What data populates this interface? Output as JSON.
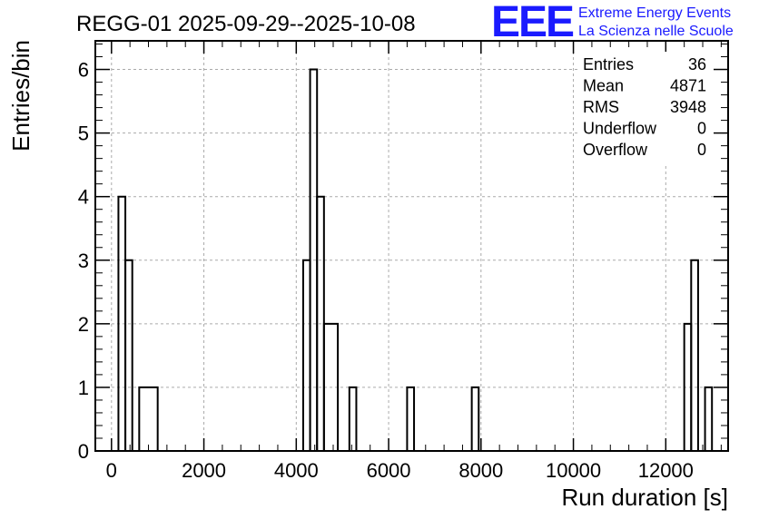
{
  "title": "REGG-01 2025-09-29--2025-10-08",
  "logo": {
    "mark": "EEE",
    "line1": "Extreme Energy Events",
    "line2": "La Scienza nelle Scuole",
    "color": "#1a1aff"
  },
  "stats": [
    {
      "label": "Entries",
      "value": "36"
    },
    {
      "label": "Mean",
      "value": "4871"
    },
    {
      "label": "RMS",
      "value": "3948"
    },
    {
      "label": "Underflow",
      "value": "0"
    },
    {
      "label": "Overflow",
      "value": "0"
    }
  ],
  "chart_data": {
    "type": "bar",
    "style": "step-histogram",
    "title": "REGG-01 2025-09-29--2025-10-08",
    "xlabel": "Run duration [s]",
    "ylabel": "Entries/bin",
    "xlim": [
      -350,
      13350
    ],
    "ylim": [
      0,
      6.45
    ],
    "grid": true,
    "legend": "none",
    "stats_box": "top-right",
    "x_ticks": [
      0,
      2000,
      4000,
      6000,
      8000,
      10000,
      12000
    ],
    "x_tick_labels": [
      "0",
      "2000",
      "4000",
      "6000",
      "8000",
      "10000",
      "12000"
    ],
    "y_ticks": [
      0,
      1,
      2,
      3,
      4,
      5,
      6
    ],
    "y_tick_labels": [
      "0",
      "1",
      "2",
      "3",
      "4",
      "5",
      "6"
    ],
    "bin_width": 150,
    "bins": [
      {
        "x_low": 150,
        "x_high": 300,
        "value": 4
      },
      {
        "x_low": 300,
        "x_high": 450,
        "value": 3
      },
      {
        "x_low": 600,
        "x_high": 1000,
        "value": 1
      },
      {
        "x_low": 4150,
        "x_high": 4300,
        "value": 3
      },
      {
        "x_low": 4300,
        "x_high": 4450,
        "value": 6
      },
      {
        "x_low": 4450,
        "x_high": 4600,
        "value": 4
      },
      {
        "x_low": 4600,
        "x_high": 4900,
        "value": 2
      },
      {
        "x_low": 5150,
        "x_high": 5300,
        "value": 1
      },
      {
        "x_low": 6400,
        "x_high": 6550,
        "value": 1
      },
      {
        "x_low": 7800,
        "x_high": 7950,
        "value": 1
      },
      {
        "x_low": 12400,
        "x_high": 12550,
        "value": 2
      },
      {
        "x_low": 12550,
        "x_high": 12700,
        "value": 3
      },
      {
        "x_low": 12850,
        "x_high": 13000,
        "value": 1
      }
    ],
    "line_color": "#000000",
    "grid_color": "#aaaaaa"
  }
}
